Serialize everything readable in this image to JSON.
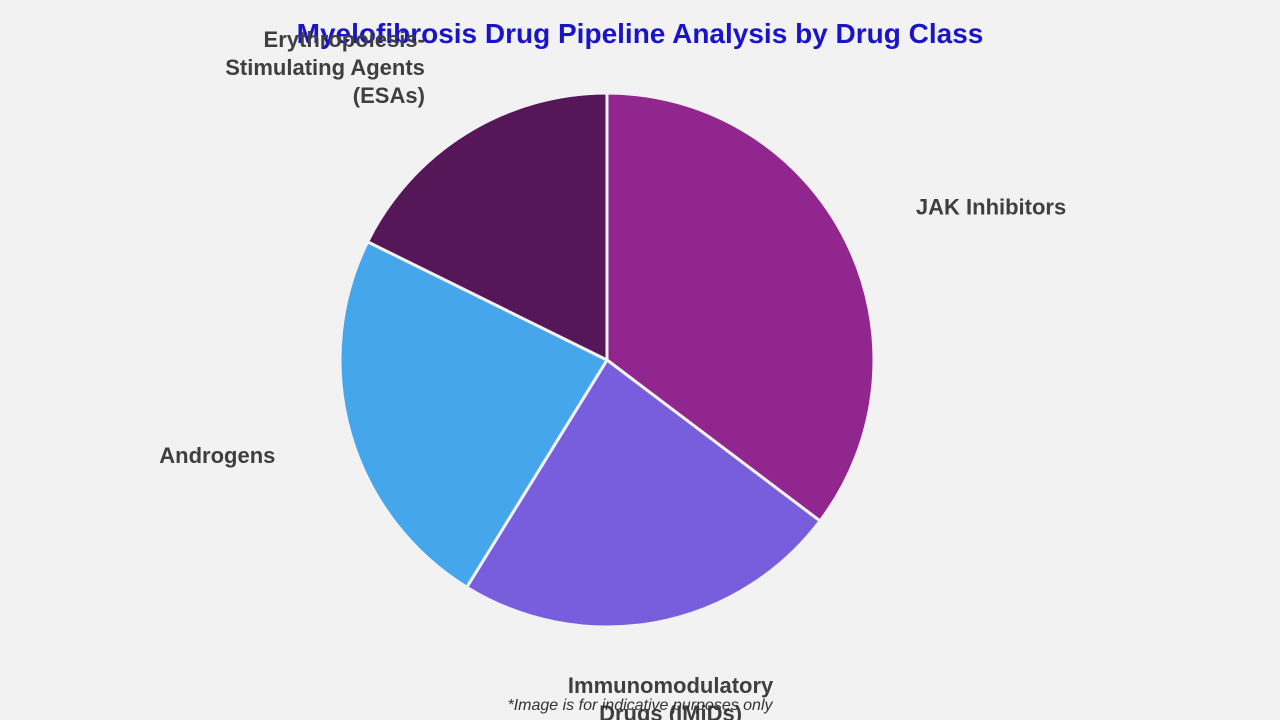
{
  "chart_data": {
    "type": "pie",
    "title": "Myelofibrosis Drug Pipeline Analysis by Drug Class",
    "slices": [
      {
        "label": "JAK Inhibitors",
        "value": 35.3,
        "color": "#91268e"
      },
      {
        "label": "Immunomodulatory Drugs (IMiDs)",
        "value": 23.5,
        "color": "#785edc"
      },
      {
        "label": "Androgens",
        "value": 23.5,
        "color": "#46a6eb"
      },
      {
        "label": "Erythropoiesis-Stimulating Agents (ESAs)",
        "value": 17.7,
        "color": "#561758"
      }
    ],
    "label_lines": [
      [
        "JAK Inhibitors"
      ],
      [
        "Immunomodulatory",
        "Drugs (IMiDs)"
      ],
      [
        "Androgens"
      ],
      [
        "Erythropoiesis-",
        "Stimulating Agents",
        "(ESAs)"
      ]
    ],
    "start_angle_deg": 0,
    "direction": "clockwise",
    "slice_border_color": "#f2f2f3"
  },
  "footnote": "*Image is for indicative purposes only"
}
